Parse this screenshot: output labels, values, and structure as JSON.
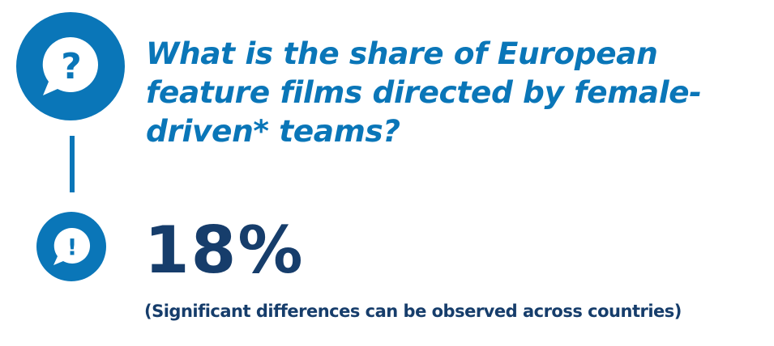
{
  "question": {
    "icon": "question-speech-bubble-icon",
    "symbol": "?",
    "text": "What is the share of European feature films directed by female-driven* teams?"
  },
  "answer": {
    "icon": "exclamation-speech-bubble-icon",
    "symbol": "!",
    "value": "18%",
    "note": "(Significant differences can be observed across countries)"
  },
  "colors": {
    "accent_blue": "#0a76b8",
    "dark_navy": "#163d6b",
    "background": "#ffffff"
  }
}
